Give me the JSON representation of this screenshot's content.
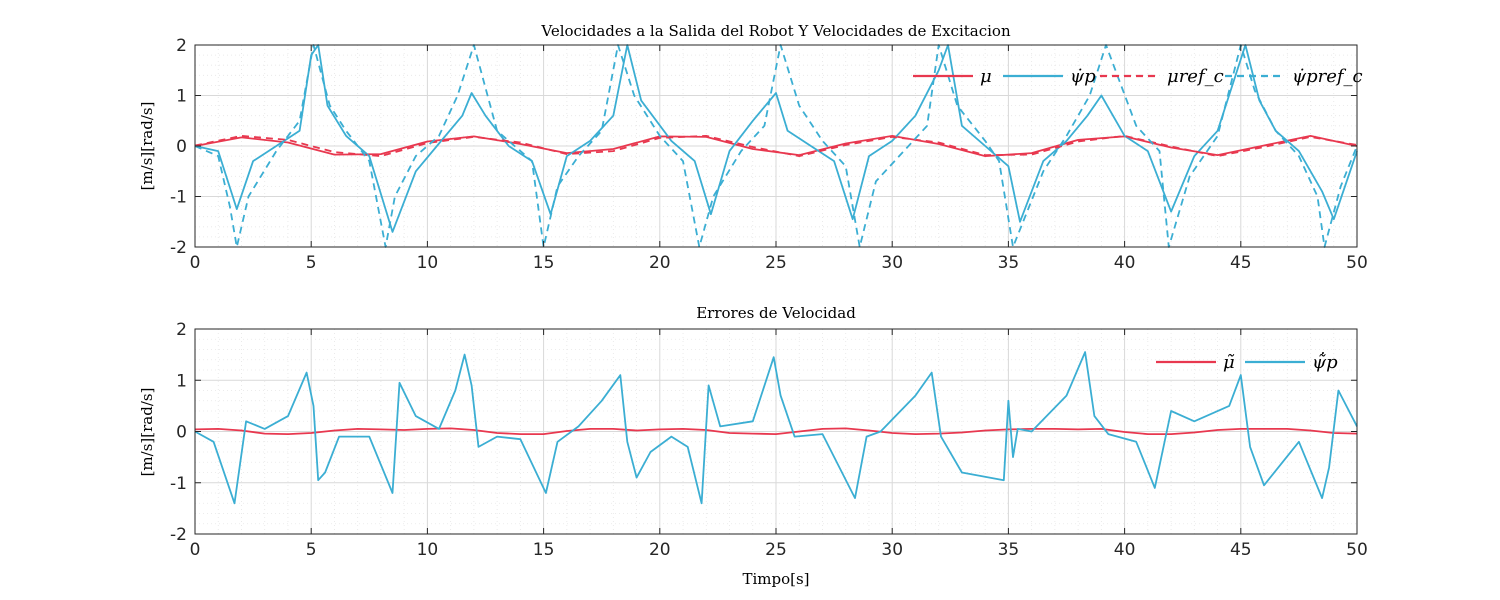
{
  "colors": {
    "red": "#E8384F",
    "blue": "#3BAED3",
    "grid": "#d9d9d9",
    "axis": "#262626"
  },
  "chart_data": [
    {
      "type": "line",
      "title": "Velocidades a la Salida del Robot Y Velocidades de Excitacion",
      "xlabel": "",
      "ylabel": "[m/s][rad/s]",
      "xlim": [
        0,
        50
      ],
      "ylim": [
        -2,
        2
      ],
      "xticks": [
        "0",
        "5",
        "10",
        "15",
        "20",
        "25",
        "30",
        "35",
        "40",
        "45",
        "50"
      ],
      "yticks": [
        "2",
        "1",
        "0",
        "-1",
        "-2"
      ],
      "grid": true,
      "legend_position": "top-right",
      "series": [
        {
          "name": "μ",
          "style": "solid",
          "color": "#E8384F",
          "x": [
            0,
            2,
            4,
            6,
            8,
            10,
            12,
            14,
            16,
            18,
            20,
            22,
            24,
            26,
            28,
            30,
            32,
            34,
            36,
            38,
            40,
            42,
            44,
            46,
            48,
            50
          ],
          "y": [
            0,
            0.17,
            0.07,
            -0.17,
            -0.16,
            0.09,
            0.19,
            0.04,
            -0.14,
            -0.06,
            0.19,
            0.18,
            -0.06,
            -0.18,
            0.05,
            0.2,
            0.04,
            -0.2,
            -0.14,
            0.12,
            0.19,
            -0.03,
            -0.18,
            0.01,
            0.2,
            0
          ]
        },
        {
          "name": "ψ̇p",
          "style": "solid",
          "color": "#3BAED3",
          "x": [
            0,
            1,
            1.8,
            2.5,
            3.5,
            4.5,
            5,
            5.3,
            5.7,
            6.5,
            7.5,
            8.5,
            9.5,
            10.5,
            11.5,
            11.9,
            12.5,
            13.5,
            14.5,
            15.3,
            16,
            17,
            18,
            18.6,
            19.2,
            20.5,
            21.5,
            22.2,
            23,
            24,
            25,
            25.5,
            26.5,
            27.5,
            28.3,
            29,
            30,
            31,
            32,
            32.4,
            33,
            34,
            35,
            35.5,
            36.5,
            37.5,
            38.4,
            39,
            40,
            41,
            42,
            43,
            44,
            45.2,
            45.8,
            46.5,
            47.5,
            48.5,
            49,
            50
          ],
          "y": [
            0,
            -0.1,
            -1.25,
            -0.3,
            0,
            0.3,
            1.8,
            2.0,
            0.8,
            0.2,
            -0.2,
            -1.7,
            -0.5,
            0.05,
            0.6,
            1.05,
            0.6,
            0,
            -0.3,
            -1.35,
            -0.2,
            0.1,
            0.6,
            2.0,
            0.9,
            0.1,
            -0.3,
            -1.35,
            -0.1,
            0.5,
            1.05,
            0.3,
            0,
            -0.3,
            -1.45,
            -0.2,
            0.1,
            0.6,
            1.5,
            2.0,
            0.4,
            0,
            -0.4,
            -1.5,
            -0.3,
            0.1,
            0.6,
            1.0,
            0.2,
            -0.1,
            -1.3,
            -0.2,
            0.3,
            2.0,
            0.9,
            0.3,
            -0.1,
            -0.9,
            -1.45,
            -0.1
          ]
        },
        {
          "name": "μref_c",
          "style": "dashed",
          "color": "#E8384F",
          "x": [
            0,
            2,
            4,
            6,
            8,
            10,
            12,
            14,
            16,
            18,
            20,
            22,
            24,
            26,
            28,
            30,
            32,
            34,
            36,
            38,
            40,
            42,
            44,
            46,
            48,
            50
          ],
          "y": [
            0.01,
            0.2,
            0.12,
            -0.12,
            -0.2,
            0.06,
            0.18,
            0.07,
            -0.16,
            -0.1,
            0.16,
            0.2,
            -0.02,
            -0.2,
            0.02,
            0.18,
            0.07,
            -0.18,
            -0.17,
            0.09,
            0.2,
            -0.01,
            -0.2,
            -0.02,
            0.18,
            0.02
          ]
        },
        {
          "name": "ψ̇pref_c",
          "style": "dashed",
          "color": "#3BAED3",
          "x": [
            0,
            1,
            1.5,
            1.8,
            2.3,
            3.5,
            4.5,
            5.1,
            5.8,
            6.5,
            7.5,
            8.2,
            8.6,
            9.5,
            10.5,
            11.3,
            12,
            13,
            14.5,
            15,
            15.6,
            16.5,
            17.5,
            18.2,
            18.9,
            20,
            21,
            21.7,
            22.3,
            23.5,
            24.5,
            25.2,
            26,
            27,
            28,
            28.6,
            29.3,
            30.5,
            31.5,
            32,
            32.8,
            34,
            34.6,
            35.2,
            36.5,
            37.5,
            38.5,
            39.2,
            40.5,
            41.5,
            41.9,
            42.8,
            44,
            45,
            45.6,
            46.5,
            47.5,
            48.3,
            48.6,
            49.3,
            50
          ],
          "y": [
            0,
            -0.2,
            -1.2,
            -2.0,
            -1.0,
            -0.1,
            0.5,
            2.0,
            0.8,
            0.3,
            -0.3,
            -2.0,
            -1.0,
            -0.2,
            0.2,
            1.0,
            2.0,
            0.3,
            -0.3,
            -2.0,
            -0.8,
            -0.2,
            0.3,
            2.0,
            1.0,
            0.2,
            -0.3,
            -2.0,
            -1.0,
            -0.1,
            0.4,
            2.0,
            0.8,
            0.1,
            -0.4,
            -2.0,
            -0.7,
            -0.1,
            0.4,
            2.0,
            0.8,
            0.1,
            -0.3,
            -2.0,
            -0.5,
            0.2,
            1.0,
            2.0,
            0.4,
            -0.1,
            -2.0,
            -0.6,
            0.2,
            2.0,
            1.1,
            0.3,
            -0.2,
            -1.0,
            -2.0,
            -0.8,
            0
          ]
        }
      ]
    },
    {
      "type": "line",
      "title": "Errores de Velocidad",
      "xlabel": "Timpo[s]",
      "ylabel": "[m/s][rad/s]",
      "xlim": [
        0,
        50
      ],
      "ylim": [
        -2,
        2
      ],
      "xticks": [
        "0",
        "5",
        "10",
        "15",
        "20",
        "25",
        "30",
        "35",
        "40",
        "45",
        "50"
      ],
      "yticks": [
        "2",
        "1",
        "0",
        "-1",
        "-2"
      ],
      "grid": true,
      "legend_position": "top-right",
      "series": [
        {
          "name": "μ̃",
          "style": "solid",
          "color": "#E8384F",
          "x": [
            0,
            1,
            2,
            3,
            4,
            5,
            6,
            7,
            8,
            9,
            10,
            11,
            12,
            13,
            14,
            15,
            16,
            17,
            18,
            19,
            20,
            21,
            22,
            23,
            24,
            25,
            26,
            27,
            28,
            29,
            30,
            31,
            32,
            33,
            34,
            35,
            36,
            37,
            38,
            39,
            40,
            41,
            42,
            43,
            44,
            45,
            46,
            47,
            48,
            49,
            50
          ],
          "y": [
            0.04,
            0.05,
            0.02,
            -0.04,
            -0.05,
            -0.03,
            0.02,
            0.05,
            0.04,
            0.03,
            0.05,
            0.06,
            0.03,
            -0.03,
            -0.05,
            -0.05,
            0.01,
            0.05,
            0.05,
            0.02,
            0.04,
            0.05,
            0.03,
            -0.03,
            -0.04,
            -0.05,
            0.0,
            0.05,
            0.06,
            0.02,
            -0.03,
            -0.05,
            -0.04,
            -0.02,
            0.02,
            0.04,
            0.05,
            0.05,
            0.04,
            0.05,
            -0.01,
            -0.05,
            -0.05,
            -0.02,
            0.03,
            0.05,
            0.05,
            0.05,
            0.02,
            -0.03,
            -0.04
          ]
        },
        {
          "name": "ψ̃̇p",
          "style": "solid",
          "color": "#3BAED3",
          "x": [
            0,
            0.8,
            1.7,
            2.2,
            3,
            4,
            4.8,
            5.1,
            5.3,
            5.6,
            6.2,
            7.5,
            8.5,
            8.8,
            9.5,
            10.5,
            11.2,
            11.6,
            11.9,
            12.2,
            13,
            14,
            15.1,
            15.6,
            16.5,
            17.5,
            18.3,
            18.6,
            19,
            19.6,
            20.5,
            21.2,
            21.8,
            22.1,
            22.6,
            24,
            24.9,
            25.2,
            25.8,
            27,
            28.4,
            28.9,
            29.5,
            31,
            31.7,
            32.1,
            33,
            34.8,
            35,
            35.2,
            35.4,
            36,
            37.5,
            38.3,
            38.7,
            39.3,
            40.5,
            41.3,
            42,
            43,
            44.5,
            45,
            45.4,
            46,
            47.5,
            48.5,
            48.8,
            49.2,
            50
          ],
          "y": [
            0,
            -0.2,
            -1.4,
            0.2,
            0.05,
            0.3,
            1.15,
            0.5,
            -0.95,
            -0.8,
            -0.1,
            -0.1,
            -1.2,
            0.95,
            0.3,
            0.05,
            0.8,
            1.5,
            0.9,
            -0.3,
            -0.1,
            -0.15,
            -1.2,
            -0.2,
            0.1,
            0.6,
            1.1,
            -0.2,
            -0.9,
            -0.4,
            -0.1,
            -0.3,
            -1.4,
            0.9,
            0.1,
            0.2,
            1.45,
            0.7,
            -0.1,
            -0.05,
            -1.3,
            -0.1,
            0,
            0.7,
            1.15,
            -0.1,
            -0.8,
            -0.95,
            0.6,
            -0.5,
            0.05,
            0,
            0.7,
            1.55,
            0.3,
            -0.05,
            -0.2,
            -1.1,
            0.4,
            0.2,
            0.5,
            1.1,
            -0.3,
            -1.05,
            -0.2,
            -1.3,
            -0.7,
            0.8,
            0.1
          ]
        }
      ]
    }
  ]
}
